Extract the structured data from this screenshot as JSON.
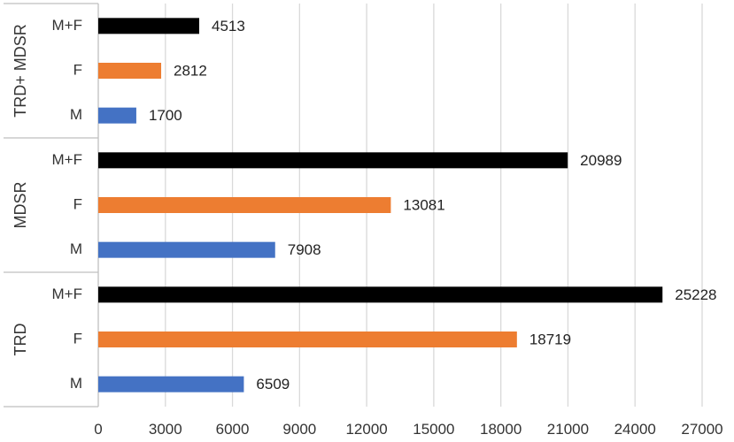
{
  "chart_data": {
    "type": "bar",
    "orientation": "horizontal",
    "title": "",
    "xlabel": "",
    "ylabel": "",
    "xlim": [
      0,
      27000
    ],
    "xticks": [
      "0",
      "3000",
      "6000",
      "9000",
      "12000",
      "15000",
      "18000",
      "21000",
      "24000",
      "27000"
    ],
    "grid": true,
    "legend": "none",
    "groups": [
      {
        "name": "TRD+ MDSR",
        "bars": [
          {
            "category": "M+F",
            "value": 4513,
            "label": "4513",
            "color": "#000000"
          },
          {
            "category": "F",
            "value": 2812,
            "label": "2812",
            "color": "#ED7D31"
          },
          {
            "category": "M",
            "value": 1700,
            "label": "1700",
            "color": "#4472C4"
          }
        ]
      },
      {
        "name": "MDSR",
        "bars": [
          {
            "category": "M+F",
            "value": 20989,
            "label": "20989",
            "color": "#000000"
          },
          {
            "category": "F",
            "value": 13081,
            "label": "13081",
            "color": "#ED7D31"
          },
          {
            "category": "M",
            "value": 7908,
            "label": "7908",
            "color": "#4472C4"
          }
        ]
      },
      {
        "name": "TRD",
        "bars": [
          {
            "category": "M+F",
            "value": 25228,
            "label": "25228",
            "color": "#000000"
          },
          {
            "category": "F",
            "value": 18719,
            "label": "18719",
            "color": "#ED7D31"
          },
          {
            "category": "M",
            "value": 6509,
            "label": "6509",
            "color": "#4472C4"
          }
        ]
      }
    ]
  }
}
